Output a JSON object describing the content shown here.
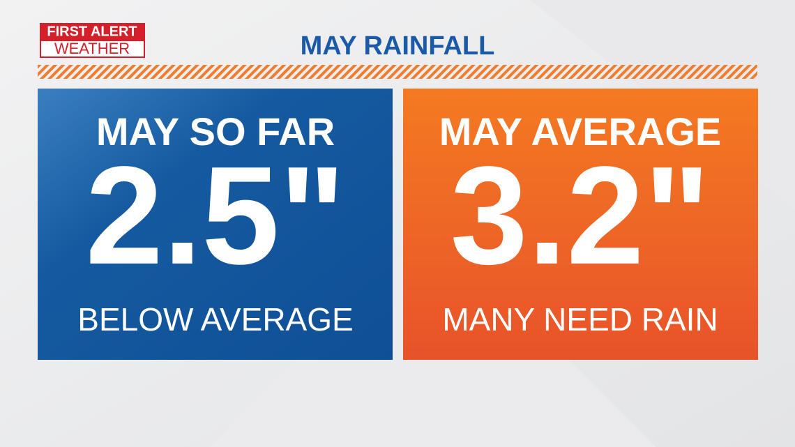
{
  "logo": {
    "top": "FIRST ALERT",
    "bottom": "WEATHER"
  },
  "title": "MAY RAINFALL",
  "panels": [
    {
      "heading": "MAY SO FAR",
      "value": "2.5\"",
      "note": "BELOW AVERAGE"
    },
    {
      "heading": "MAY AVERAGE",
      "value": "3.2\"",
      "note": "MANY NEED RAIN"
    }
  ]
}
